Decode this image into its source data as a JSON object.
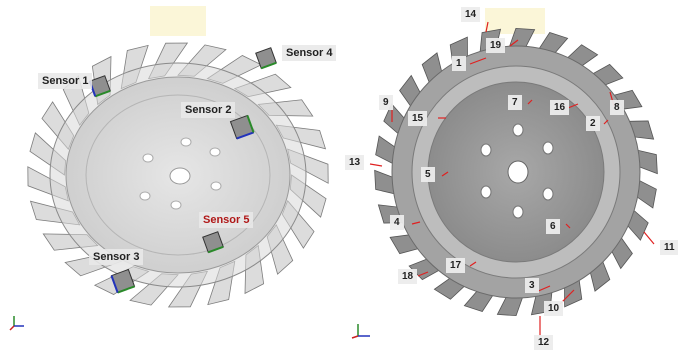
{
  "left_view": {
    "sensors": [
      {
        "id": "sensor-1",
        "label": "Sensor 1"
      },
      {
        "id": "sensor-2",
        "label": "Sensor 2"
      },
      {
        "id": "sensor-3",
        "label": "Sensor 3"
      },
      {
        "id": "sensor-4",
        "label": "Sensor 4"
      },
      {
        "id": "sensor-5",
        "label": "Sensor 5"
      }
    ],
    "highlight_color": "#b01818"
  },
  "right_view": {
    "markers": [
      "1",
      "2",
      "3",
      "4",
      "5",
      "6",
      "7",
      "8",
      "9",
      "10",
      "11",
      "12",
      "13",
      "14",
      "15",
      "16",
      "17",
      "18",
      "19"
    ]
  },
  "colors": {
    "wheel_fill": "#9a9a9a",
    "wheel_translucent": "#c9c9c9",
    "marker_line": "#e02020"
  }
}
